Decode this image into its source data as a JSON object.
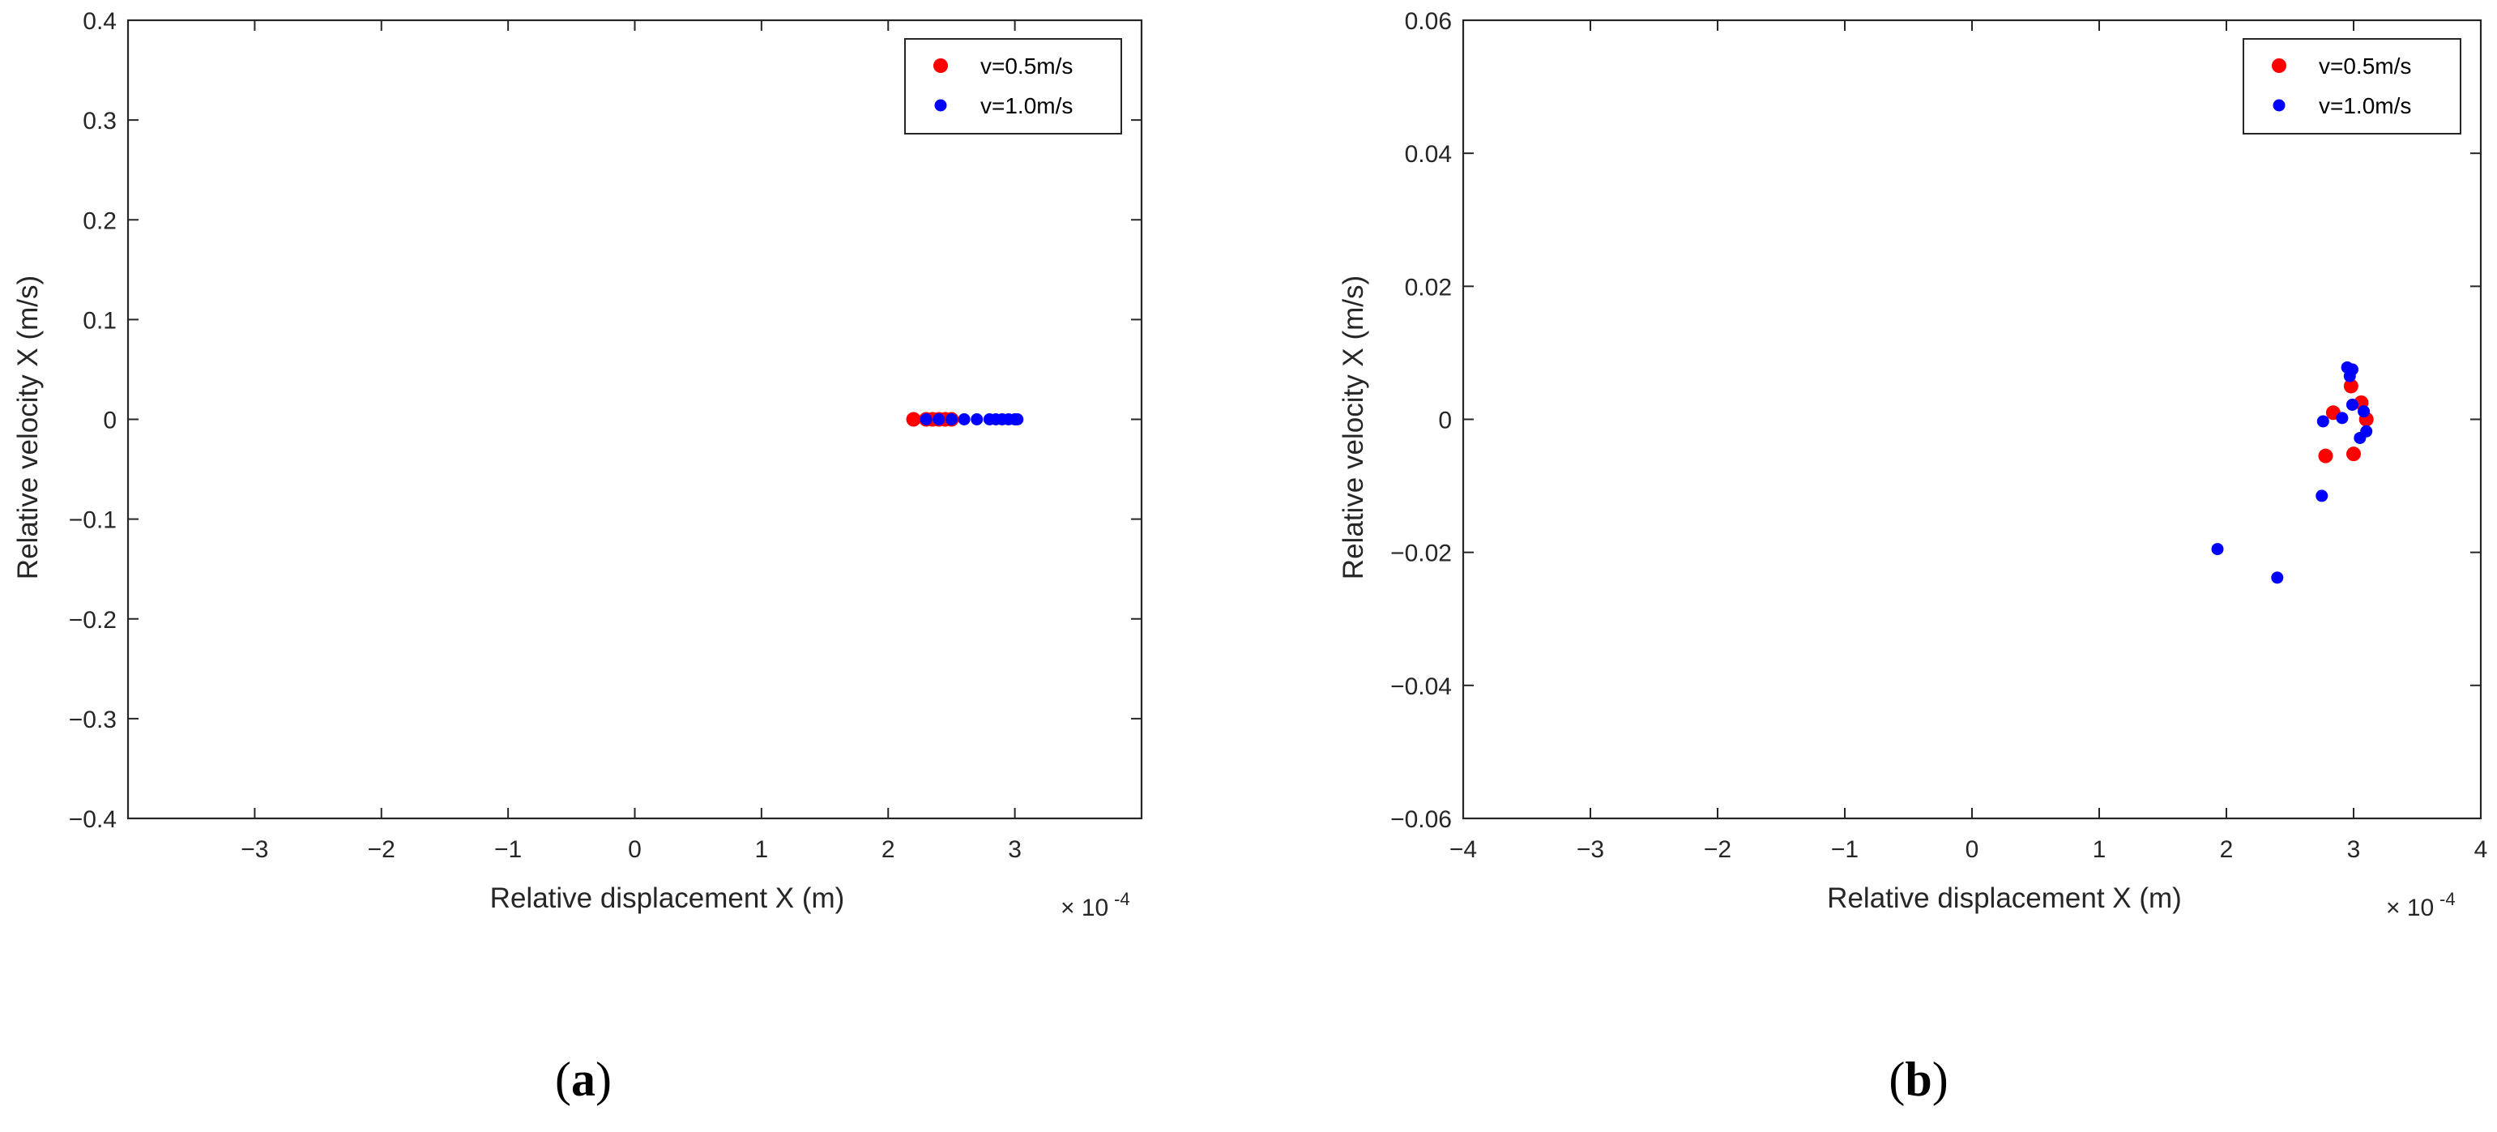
{
  "chart_data": [
    {
      "type": "scatter",
      "panel_label": "a",
      "xlabel": "Relative displacement X (m)",
      "ylabel": "Relative velocity X (m/s)",
      "x_multiplier_base": "× 10",
      "x_multiplier_exp": "-4",
      "xlim": [
        -4,
        4
      ],
      "ylim": [
        -0.4,
        0.4
      ],
      "xticks": [
        -3,
        -2,
        -1,
        0,
        1,
        2,
        3
      ],
      "xtick_labels": [
        "−3",
        "−2",
        "−1",
        "0",
        "1",
        "2",
        "3"
      ],
      "yticks": [
        -0.4,
        -0.3,
        -0.2,
        -0.1,
        0,
        0.1,
        0.2,
        0.3,
        0.4
      ],
      "ytick_labels": [
        "−0.4",
        "−0.3",
        "−0.2",
        "−0.1",
        "0",
        "0.1",
        "0.2",
        "0.3",
        "0.4"
      ],
      "grid": false,
      "legend_position": "top-right",
      "series": [
        {
          "name": "v=0.5m/s",
          "color": "#ff0000",
          "points": [
            [
              2.2,
              0
            ],
            [
              2.3,
              0
            ],
            [
              2.35,
              0
            ],
            [
              2.4,
              0
            ],
            [
              2.45,
              0
            ],
            [
              2.5,
              0
            ]
          ]
        },
        {
          "name": "v=1.0m/s",
          "color": "#0000ff",
          "points": [
            [
              2.3,
              0
            ],
            [
              2.4,
              0
            ],
            [
              2.5,
              0
            ],
            [
              2.6,
              0
            ],
            [
              2.7,
              0
            ],
            [
              2.8,
              0
            ],
            [
              2.85,
              0
            ],
            [
              2.9,
              0
            ],
            [
              2.95,
              0
            ],
            [
              3.0,
              0
            ],
            [
              3.02,
              0
            ]
          ]
        }
      ]
    },
    {
      "type": "scatter",
      "panel_label": "b",
      "xlabel": "Relative displacement X (m)",
      "ylabel": "Relative velocity X (m/s)",
      "x_multiplier_base": "× 10",
      "x_multiplier_exp": "-4",
      "xlim": [
        -4,
        4
      ],
      "ylim": [
        -0.06,
        0.06
      ],
      "xticks": [
        -4,
        -3,
        -2,
        -1,
        0,
        1,
        2,
        3,
        4
      ],
      "xtick_labels": [
        "−4",
        "−3",
        "−2",
        "−1",
        "0",
        "1",
        "2",
        "3",
        "4"
      ],
      "yticks": [
        -0.06,
        -0.04,
        -0.02,
        0,
        0.02,
        0.04,
        0.06
      ],
      "ytick_labels": [
        "−0.06",
        "−0.04",
        "−0.02",
        "0",
        "0.02",
        "0.04",
        "0.06"
      ],
      "grid": false,
      "legend_position": "top-right",
      "series": [
        {
          "name": "v=0.5m/s",
          "color": "#ff0000",
          "points": [
            [
              2.78,
              -0.0055
            ],
            [
              2.84,
              0.001
            ],
            [
              2.98,
              0.005
            ],
            [
              3.0,
              -0.0052
            ],
            [
              3.06,
              0.0025
            ],
            [
              3.1,
              0.0
            ]
          ]
        },
        {
          "name": "v=1.0m/s",
          "color": "#0000ff",
          "points": [
            [
              1.93,
              -0.0195
            ],
            [
              2.4,
              -0.0238
            ],
            [
              2.75,
              -0.0115
            ],
            [
              2.76,
              -0.0003
            ],
            [
              2.91,
              0.0002
            ],
            [
              2.95,
              0.0078
            ],
            [
              2.97,
              0.0065
            ],
            [
              2.99,
              0.0075
            ],
            [
              2.99,
              0.0022
            ],
            [
              3.05,
              -0.0028
            ],
            [
              3.08,
              0.0012
            ],
            [
              3.1,
              -0.0018
            ]
          ]
        }
      ]
    }
  ]
}
